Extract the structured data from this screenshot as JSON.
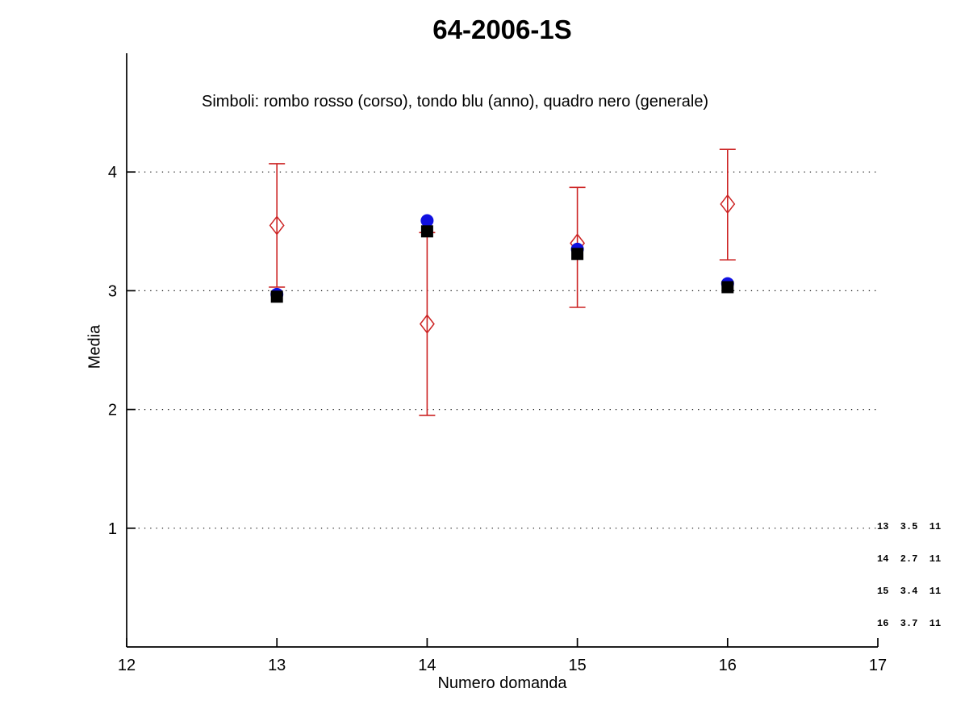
{
  "title": "64-2006-1S",
  "subtitle": "Simboli: rombo rosso (corso), tondo blu (anno), quadro nero (generale)",
  "axes": {
    "xlabel": "Numero domanda",
    "ylabel": "Media"
  },
  "annotation": {
    "lines": [
      "13  3.5  11",
      "14  2.7  11",
      "15  3.4  11",
      "16  3.7  11"
    ]
  },
  "colors": {
    "corso": "#cc2222",
    "anno": "#1010e0",
    "generale": "#000000",
    "axis": "#000000",
    "grid": "#111111"
  },
  "chart_data": {
    "type": "scatter",
    "title": "64-2006-1S",
    "subtitle": "Simboli: rombo rosso (corso), tondo blu (anno), quadro nero (generale)",
    "xlabel": "Numero domanda",
    "ylabel": "Media",
    "x": [
      13,
      14,
      15,
      16
    ],
    "xlim": [
      12,
      17
    ],
    "ylim": [
      0,
      5
    ],
    "xticks": [
      12,
      13,
      14,
      15,
      16,
      17
    ],
    "yticks": [
      1,
      2,
      3,
      4
    ],
    "grid": "horizontal-dotted-at-yticks",
    "legend_position": "text-note-above-plot",
    "series": [
      {
        "name": "corso",
        "marker": "open-diamond",
        "color": "#cc2222",
        "values": [
          3.55,
          2.72,
          3.4,
          3.73
        ],
        "error_low": [
          3.03,
          1.95,
          2.86,
          3.26
        ],
        "error_high": [
          4.07,
          3.49,
          3.87,
          4.19
        ]
      },
      {
        "name": "anno",
        "marker": "filled-circle",
        "color": "#1010e0",
        "values": [
          2.97,
          3.59,
          3.35,
          3.06
        ]
      },
      {
        "name": "generale",
        "marker": "filled-square",
        "color": "#000000",
        "values": [
          2.95,
          3.5,
          3.31,
          3.03
        ]
      }
    ],
    "annotation_table": {
      "columns": [
        "numero_domanda",
        "media_corso",
        "n"
      ],
      "rows": [
        [
          13,
          3.5,
          11
        ],
        [
          14,
          2.7,
          11
        ],
        [
          15,
          3.4,
          11
        ],
        [
          16,
          3.7,
          11
        ]
      ]
    }
  }
}
